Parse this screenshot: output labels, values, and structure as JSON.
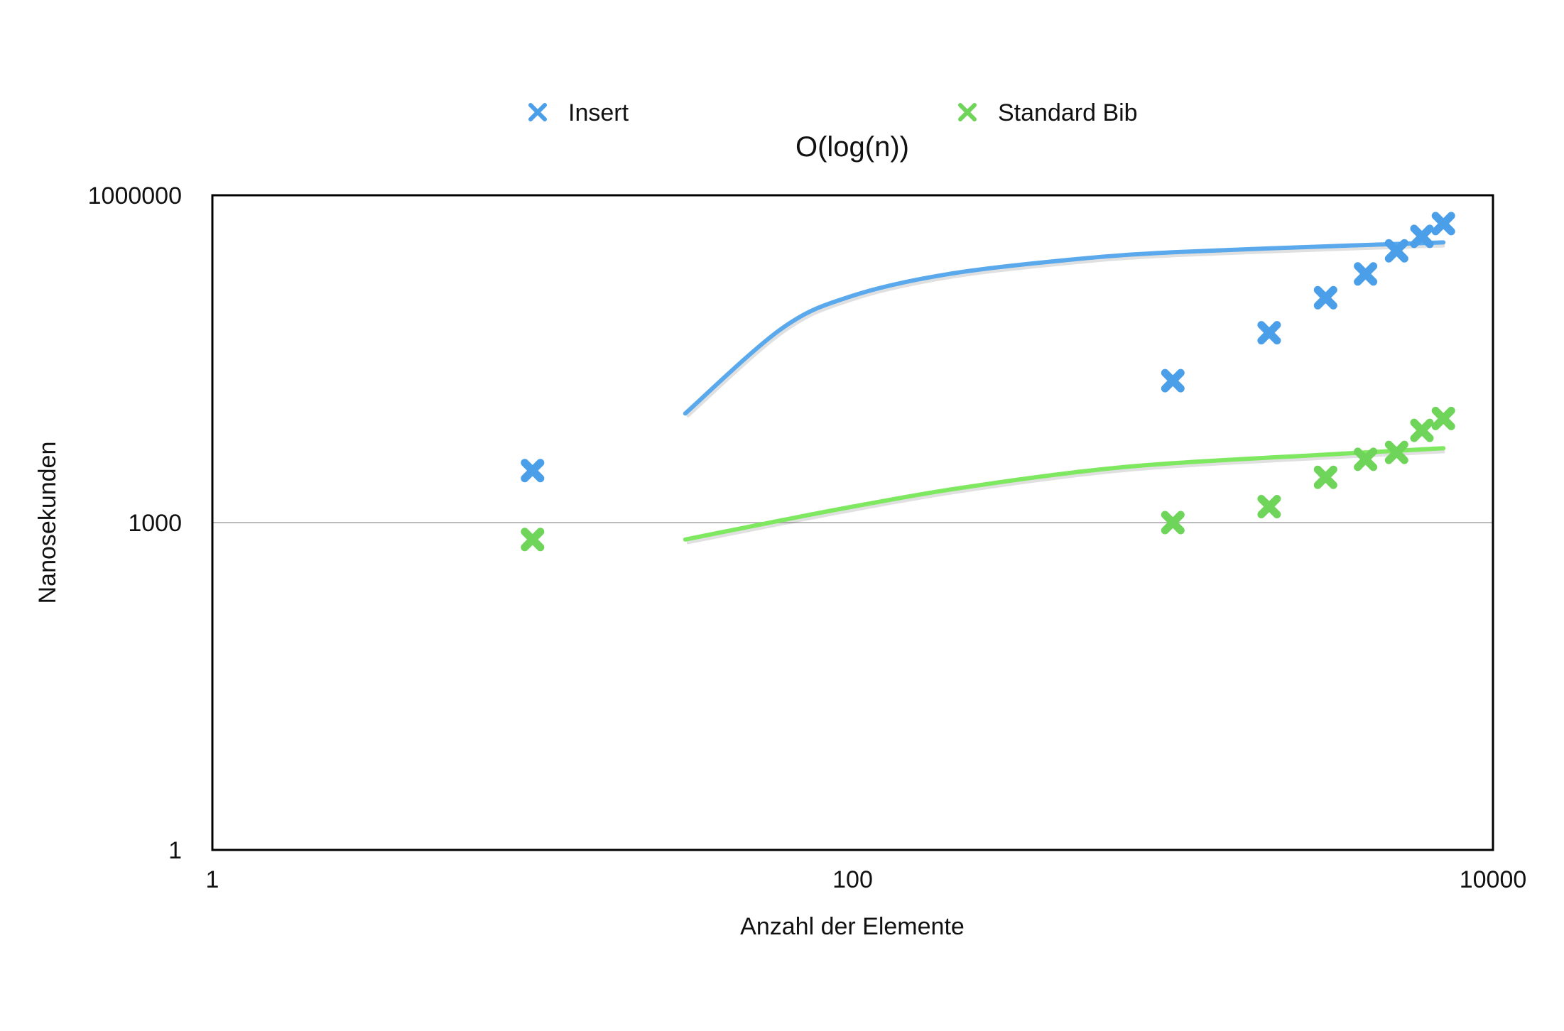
{
  "chart_data": {
    "type": "scatter",
    "title": "O(log(n))",
    "xlabel": "Anzahl der Elemente",
    "ylabel": "Nanosekunden",
    "xscale": "log",
    "yscale": "log",
    "xlim": [
      1,
      10000
    ],
    "ylim": [
      1,
      1000000
    ],
    "xticks": [
      {
        "value": 1,
        "label": "1"
      },
      {
        "value": 100,
        "label": "100"
      },
      {
        "value": 10000,
        "label": "10000"
      }
    ],
    "yticks": [
      {
        "value": 1,
        "label": "1"
      },
      {
        "value": 1000,
        "label": "1000"
      },
      {
        "value": 1000000,
        "label": "1000000"
      }
    ],
    "gridlines_y": [
      1000
    ],
    "legend_position": "top",
    "series": [
      {
        "name": "Insert",
        "color": "#4a9fe8",
        "marker": "x",
        "x": [
          10,
          1000,
          2000,
          3000,
          4000,
          5000,
          6000,
          7000
        ],
        "y": [
          3000,
          20000,
          55000,
          115000,
          190000,
          310000,
          420000,
          550000
        ],
        "trendline": {
          "color": "#5aa9ec",
          "points": [
            [
              30,
              10000
            ],
            [
              60,
              60000
            ],
            [
              100,
              120000
            ],
            [
              200,
              190000
            ],
            [
              500,
              260000
            ],
            [
              1000,
              300000
            ],
            [
              3000,
              340000
            ],
            [
              7000,
              370000
            ]
          ]
        }
      },
      {
        "name": "Standard Bib",
        "color": "#6fd45a",
        "marker": "x",
        "x": [
          10,
          1000,
          2000,
          3000,
          4000,
          5000,
          6000,
          7000
        ],
        "y": [
          700,
          1000,
          1400,
          2600,
          3800,
          4400,
          7000,
          9000
        ],
        "trendline": {
          "color": "#7ee860",
          "points": [
            [
              30,
              700
            ],
            [
              60,
              1050
            ],
            [
              100,
              1400
            ],
            [
              200,
              2000
            ],
            [
              500,
              2900
            ],
            [
              1000,
              3500
            ],
            [
              3000,
              4200
            ],
            [
              7000,
              4800
            ]
          ]
        }
      }
    ]
  }
}
